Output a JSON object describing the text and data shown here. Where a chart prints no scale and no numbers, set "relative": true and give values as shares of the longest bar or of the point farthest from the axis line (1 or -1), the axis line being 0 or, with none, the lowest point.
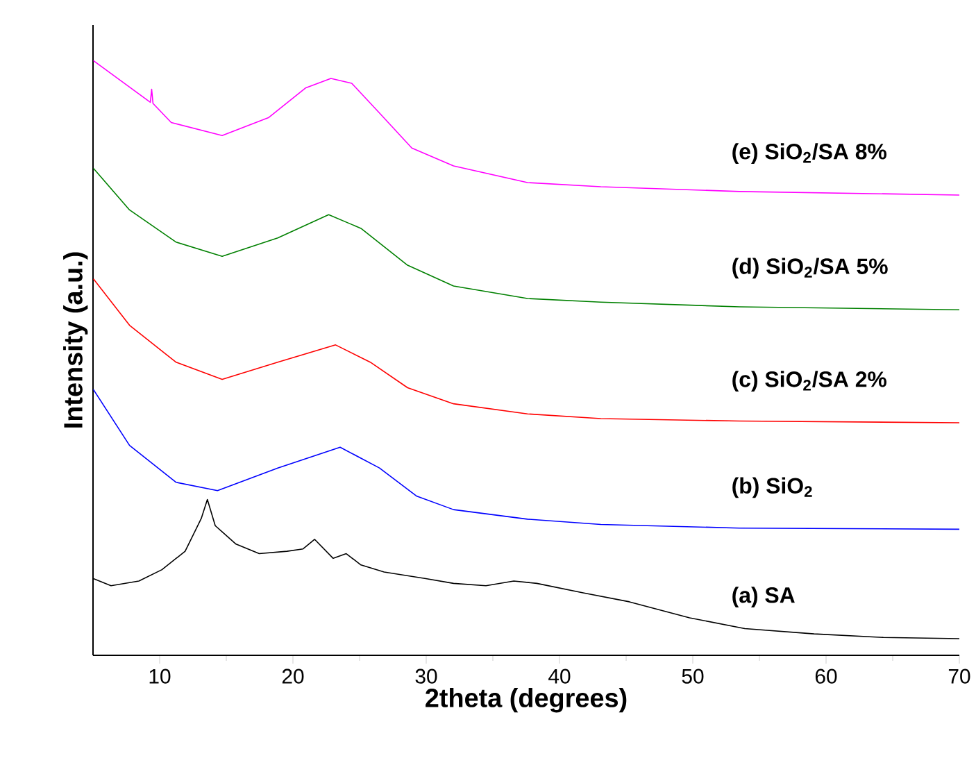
{
  "chart_data": {
    "type": "line",
    "relative": true,
    "xlabel": "2theta (degrees)",
    "ylabel": "Intensity (a.u.)",
    "xlim": [
      5,
      70
    ],
    "xticks": [
      10,
      20,
      30,
      40,
      50,
      60,
      70
    ],
    "series": [
      {
        "name": "(a) SA",
        "color": "#000000",
        "x": [
          5.03,
          6.35,
          8.44,
          10.17,
          11.91,
          13.12,
          13.58,
          14.17,
          15.73,
          17.47,
          19.55,
          20.76,
          21.63,
          23.02,
          24.0,
          25.1,
          26.84,
          29.97,
          32.05,
          34.48,
          36.57,
          38.3,
          41.77,
          45.24,
          49.76,
          53.9,
          59.1,
          64.3,
          70
        ],
        "values": [
          0.129,
          0.117,
          0.125,
          0.144,
          0.175,
          0.23,
          0.262,
          0.218,
          0.187,
          0.171,
          0.175,
          0.179,
          0.195,
          0.163,
          0.171,
          0.152,
          0.14,
          0.129,
          0.121,
          0.117,
          0.125,
          0.121,
          0.105,
          0.09,
          0.063,
          0.045,
          0.036,
          0.03,
          0.028
        ]
      },
      {
        "name": "(b) SiO$_{2}$",
        "color": "#0000ff",
        "x": [
          5.03,
          7.74,
          11.22,
          14.34,
          18.86,
          23.54,
          26.49,
          29.26,
          32.05,
          37.6,
          43.1,
          53.5,
          70
        ],
        "values": [
          0.447,
          0.353,
          0.291,
          0.277,
          0.315,
          0.35,
          0.315,
          0.268,
          0.245,
          0.229,
          0.22,
          0.214,
          0.212
        ]
      },
      {
        "name": "(c) SiO$_{2}$/SA 2%",
        "color": "#ff0000",
        "x": [
          5.03,
          7.74,
          11.22,
          14.69,
          18.86,
          23.2,
          25.8,
          28.6,
          32.05,
          37.6,
          43.1,
          53.5,
          70
        ],
        "values": [
          0.633,
          0.555,
          0.493,
          0.464,
          0.493,
          0.522,
          0.493,
          0.45,
          0.423,
          0.406,
          0.398,
          0.394,
          0.391
        ]
      },
      {
        "name": "(d) SiO$_{2}$/SA 5%",
        "color": "#008000",
        "x": [
          5.03,
          7.74,
          11.22,
          14.69,
          18.86,
          22.68,
          25.1,
          28.6,
          32.05,
          37.6,
          43.1,
          53.5,
          70
        ],
        "values": [
          0.819,
          0.749,
          0.695,
          0.671,
          0.702,
          0.741,
          0.718,
          0.656,
          0.621,
          0.6,
          0.594,
          0.586,
          0.581
        ]
      },
      {
        "name": "(e) SiO$_{2}$/SA 8%",
        "color": "#ff00ff",
        "x": [
          5.03,
          9.3,
          9.4,
          9.5,
          10.87,
          14.69,
          18.16,
          20.94,
          22.85,
          24.41,
          26.49,
          28.92,
          32.05,
          37.6,
          43.1,
          53.5,
          70
        ],
        "values": [
          1.0,
          0.93,
          0.952,
          0.928,
          0.896,
          0.874,
          0.904,
          0.954,
          0.97,
          0.962,
          0.912,
          0.853,
          0.823,
          0.795,
          0.788,
          0.78,
          0.774
        ]
      }
    ]
  }
}
